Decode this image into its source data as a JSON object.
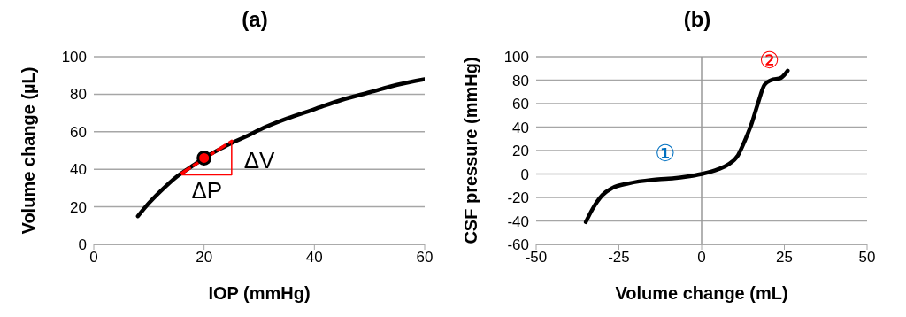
{
  "chart_data": [
    {
      "type": "line",
      "title": "(a)",
      "xlabel": "IOP (mmHg)",
      "ylabel": "Volume change (µL)",
      "xlim": [
        0,
        60
      ],
      "xticks": [
        0,
        20,
        40,
        60
      ],
      "ylim": [
        0,
        100
      ],
      "yticks": [
        0,
        20,
        40,
        60,
        80,
        100
      ],
      "grid": "y",
      "legend": false,
      "series": [
        {
          "color": "#000000",
          "line_style": "solid",
          "x": [
            8,
            10,
            12,
            15,
            18,
            20,
            23,
            25,
            28,
            30,
            35,
            40,
            45,
            50,
            55,
            60
          ],
          "values": [
            15,
            22,
            28,
            36,
            42,
            46,
            51,
            54,
            58,
            61,
            67,
            72,
            77,
            81,
            85,
            88
          ]
        },
        {
          "color": "#ff0000",
          "line_style": "dashed",
          "x": [
            16,
            25
          ],
          "values": [
            38,
            55
          ]
        },
        {
          "color": "#ff0000",
          "line_style": "solid",
          "x": [
            16,
            25,
            25
          ],
          "values": [
            37,
            37,
            55
          ]
        },
        {
          "type": "scatter",
          "color": "#ff0000",
          "marker": "circle",
          "x": [
            20
          ],
          "values": [
            46
          ]
        }
      ],
      "annotations": [
        "ΔV",
        "ΔP"
      ]
    },
    {
      "type": "line",
      "title": "(b)",
      "xlabel": "Volume change (mL)",
      "ylabel": "CSF pressure (mmHg)",
      "xlim": [
        -50,
        50
      ],
      "xticks": [
        -50,
        -25,
        0,
        25,
        50
      ],
      "ylim": [
        -60,
        100
      ],
      "yticks": [
        -60,
        -40,
        -20,
        0,
        20,
        40,
        60,
        80,
        100
      ],
      "grid": "y",
      "legend": false,
      "ref_lines": [
        {
          "axis": "x",
          "value": 0,
          "color": "#999999"
        }
      ],
      "series": [
        {
          "color": "#000000",
          "line_style": "solid",
          "x": [
            -35,
            -33,
            -30,
            -27,
            -22,
            -15,
            -10,
            -5,
            0,
            5,
            8,
            11,
            13,
            15,
            17,
            19,
            21,
            24,
            26
          ],
          "values": [
            -41,
            -30,
            -18,
            -12,
            -8,
            -5,
            -4,
            -2.5,
            0,
            4,
            8,
            16,
            28,
            42,
            60,
            76,
            80,
            82,
            88
          ]
        }
      ],
      "annotations": [
        "①",
        "②"
      ]
    }
  ]
}
